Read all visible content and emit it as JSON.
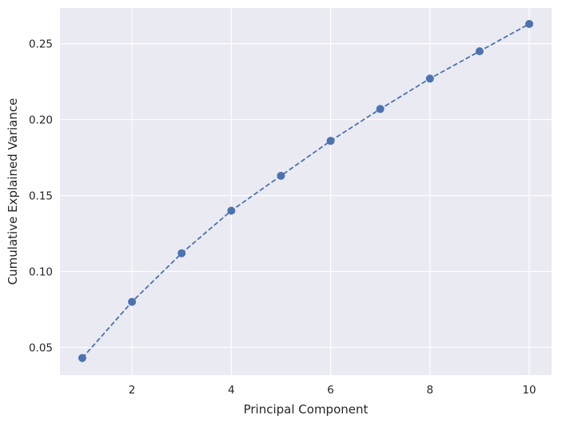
{
  "chart_data": {
    "type": "line",
    "title": "",
    "xlabel": "Principal Component",
    "ylabel": "Cumulative Explained Variance",
    "x": [
      1,
      2,
      3,
      4,
      5,
      6,
      7,
      8,
      9,
      10
    ],
    "series": [
      {
        "values": [
          0.043,
          0.08,
          0.112,
          0.14,
          0.163,
          0.186,
          0.207,
          0.227,
          0.245,
          0.263
        ],
        "color": "#4c72b0",
        "line_style": "dashed",
        "marker": "circle"
      }
    ],
    "xlim": [
      0.55,
      10.45
    ],
    "ylim": [
      0.0318,
      0.2735
    ],
    "xticks": [
      2,
      4,
      6,
      8,
      10
    ],
    "xtick_labels": [
      "2",
      "4",
      "6",
      "8",
      "10"
    ],
    "yticks": [
      0.05,
      0.1,
      0.15,
      0.2,
      0.25
    ],
    "ytick_labels": [
      "0.05",
      "0.10",
      "0.15",
      "0.20",
      "0.25"
    ],
    "grid": true,
    "legend": "none",
    "background_color": "#eaeaf2",
    "grid_color": "#ffffff"
  }
}
